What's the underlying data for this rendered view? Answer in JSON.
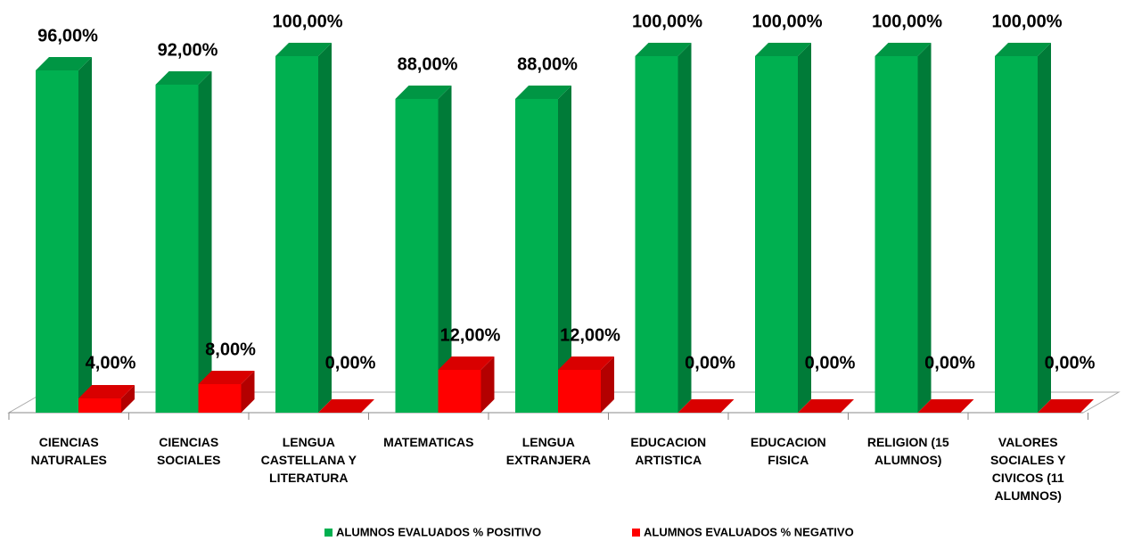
{
  "chart_data": {
    "type": "bar3d",
    "categories": [
      "CIENCIAS NATURALES",
      "CIENCIAS SOCIALES",
      "LENGUA CASTELLANA Y LITERATURA",
      "MATEMATICAS",
      "LENGUA EXTRANJERA",
      "EDUCACION ARTISTICA",
      "EDUCACION FISICA",
      "RELIGION (15 ALUMNOS)",
      "VALORES SOCIALES Y CIVICOS (11 ALUMNOS)"
    ],
    "series": [
      {
        "name": "ALUMNOS EVALUADOS % POSITIVO",
        "color": "#00b050",
        "values": [
          96,
          92,
          100,
          88,
          88,
          100,
          100,
          100,
          100
        ],
        "value_labels": [
          "96,00%",
          "92,00%",
          "100,00%",
          "88,00%",
          "88,00%",
          "100,00%",
          "100,00%",
          "100,00%",
          "100,00%"
        ]
      },
      {
        "name": "ALUMNOS EVALUADOS % NEGATIVO",
        "color": "#ff0000",
        "values": [
          4,
          8,
          0,
          12,
          12,
          0,
          0,
          0,
          0
        ],
        "value_labels": [
          "4,00%",
          "8,00%",
          "0,00%",
          "12,00%",
          "12,00%",
          "0,00%",
          "0,00%",
          "0,00%",
          "0,00%"
        ]
      }
    ],
    "legend": "bottom"
  }
}
